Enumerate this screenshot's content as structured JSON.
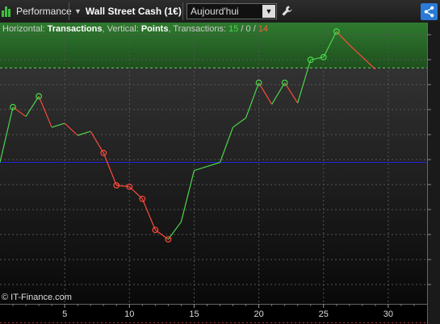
{
  "toolbar": {
    "performance_label": "Performance",
    "instrument_label": "Wall Street Cash (1€)",
    "period_label": "Aujourd'hui"
  },
  "header": {
    "horizontal_prefix": "Horizontal:",
    "horizontal_value": "Transactions",
    "vertical_prefix": "Vertical:",
    "vertical_value": "Points",
    "transactions_prefix": "Transactions:",
    "wins": "15",
    "neutral": "0",
    "losses": "14",
    "separator": "/"
  },
  "copyright": "© IT-Finance.com",
  "colors": {
    "gain": "#4cd64c",
    "loss": "#ff4a3a",
    "baseline": "#2222dd",
    "target_zone": "#2f7a2f",
    "share_button": "#2b7bd6"
  },
  "chart_data": {
    "type": "line",
    "x_tick_labels": [
      "5",
      "10",
      "15",
      "20",
      "25",
      "30"
    ],
    "x_ticks": [
      5,
      10,
      15,
      20,
      25,
      30
    ],
    "xlim": [
      0,
      33
    ],
    "y_relative_range": [
      0,
      1
    ],
    "baseline_level": 0.5,
    "target_level": 0.85,
    "x": [
      0,
      1,
      2,
      3,
      4,
      5,
      6,
      7,
      8,
      9,
      10,
      11,
      12,
      13,
      14,
      15,
      16,
      17,
      18,
      19,
      20,
      21,
      22,
      23,
      24,
      25,
      26,
      27,
      28,
      29
    ],
    "y": [
      0.5,
      0.705,
      0.67,
      0.745,
      0.63,
      0.645,
      0.6,
      0.615,
      0.535,
      0.415,
      0.41,
      0.365,
      0.25,
      0.215,
      0.28,
      0.47,
      0.485,
      0.5,
      0.63,
      0.665,
      0.795,
      0.715,
      0.795,
      0.72,
      0.88,
      0.89,
      0.985,
      0.935,
      0.89,
      0.845
    ],
    "markers": [
      1,
      3,
      8,
      9,
      10,
      11,
      12,
      13,
      20,
      22,
      24,
      25,
      26
    ],
    "grid": true
  }
}
